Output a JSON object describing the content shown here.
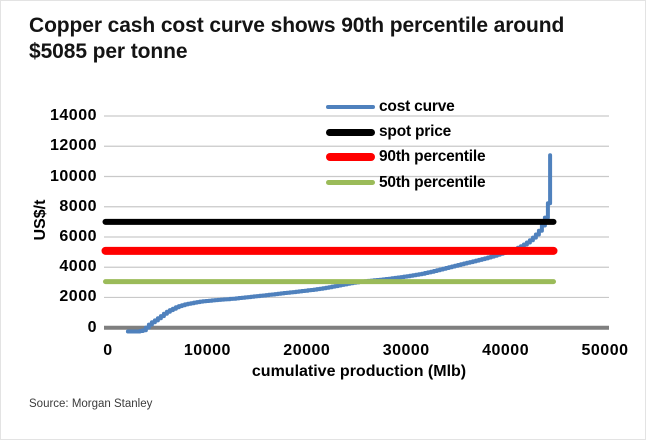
{
  "title": "Copper cash cost curve shows 90th percentile around $5085 per tonne",
  "source": "Source: Morgan Stanley",
  "chart_data": {
    "type": "line",
    "title": "Copper cash cost curve shows 90th percentile around $5085 per tonne",
    "xlabel": "cumulative production (Mlb)",
    "ylabel": "US$/t",
    "xlim": [
      0,
      50000
    ],
    "ylim": [
      0,
      14000
    ],
    "x_ticks": [
      0,
      10000,
      20000,
      30000,
      40000,
      50000
    ],
    "y_ticks": [
      0,
      2000,
      4000,
      6000,
      8000,
      10000,
      12000,
      14000
    ],
    "grid": "horizontal",
    "grid_color": "#C9C9C9",
    "axis_color": "#7F7F7F",
    "legend_position": "top-center-inside",
    "series": [
      {
        "name": "cost curve",
        "type": "curve",
        "color": "#4F81BD",
        "stroke_width": 4,
        "points": [
          [
            2000,
            -250
          ],
          [
            3000,
            -250
          ],
          [
            3600,
            -150
          ],
          [
            4000,
            150
          ],
          [
            4400,
            350
          ],
          [
            4800,
            520
          ],
          [
            5300,
            760
          ],
          [
            5800,
            1020
          ],
          [
            6400,
            1220
          ],
          [
            7000,
            1400
          ],
          [
            7600,
            1520
          ],
          [
            8400,
            1630
          ],
          [
            9200,
            1720
          ],
          [
            10200,
            1790
          ],
          [
            11200,
            1850
          ],
          [
            12400,
            1910
          ],
          [
            13600,
            1990
          ],
          [
            15000,
            2090
          ],
          [
            16400,
            2190
          ],
          [
            17800,
            2300
          ],
          [
            19200,
            2400
          ],
          [
            20600,
            2510
          ],
          [
            22000,
            2650
          ],
          [
            23200,
            2800
          ],
          [
            24400,
            2950
          ],
          [
            25600,
            3060
          ],
          [
            27000,
            3150
          ],
          [
            28400,
            3250
          ],
          [
            29800,
            3380
          ],
          [
            31200,
            3520
          ],
          [
            32600,
            3720
          ],
          [
            34000,
            3950
          ],
          [
            35400,
            4180
          ],
          [
            36800,
            4400
          ],
          [
            38000,
            4600
          ],
          [
            39000,
            4800
          ],
          [
            40000,
            5000
          ],
          [
            40800,
            5160
          ],
          [
            41600,
            5400
          ],
          [
            42300,
            5700
          ],
          [
            42900,
            6050
          ],
          [
            43400,
            6450
          ],
          [
            43800,
            6950
          ],
          [
            44050,
            7500
          ],
          [
            44250,
            8200
          ],
          [
            44380,
            9200
          ],
          [
            44450,
            10300
          ],
          [
            44480,
            11400
          ]
        ]
      },
      {
        "name": "spot price",
        "type": "hline",
        "color": "#000000",
        "stroke_width": 6,
        "value": 7000
      },
      {
        "name": "90th percentile",
        "type": "hline",
        "color": "#FF0000",
        "stroke_width": 8,
        "value": 5085
      },
      {
        "name": "50th percentile",
        "type": "hline",
        "color": "#9BBB59",
        "stroke_width": 5,
        "value": 3050
      }
    ],
    "legend_swatch_heights": [
      4,
      7,
      8,
      5
    ]
  }
}
